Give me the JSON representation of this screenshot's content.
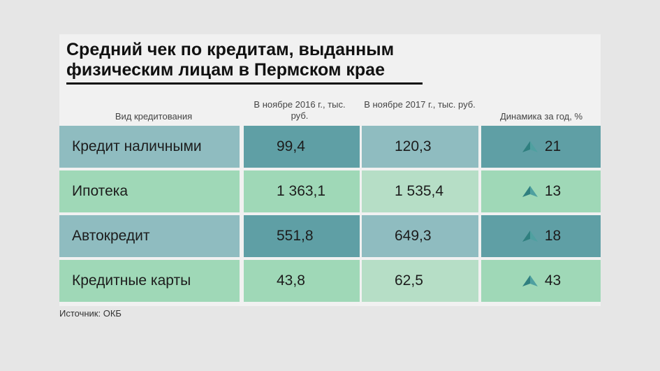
{
  "title": "Средний чек по кредитам, выданным физическим лицам в Пермском крае",
  "columns": [
    "Вид кредитования",
    "В ноябре 2016 г., тыс. руб.",
    "В ноябре 2017 г., тыс. руб.",
    "Динамика за год, %"
  ],
  "source": "Источник: ОКБ",
  "colors": {
    "dark_teal": "#5f9fa5",
    "mid_teal": "#8fbcc0",
    "light_green": "#9fd8b7",
    "pale_green": "#b6dec6",
    "arrow": "#2f7f7f"
  },
  "chart_data": {
    "type": "table",
    "categories": [
      "Кредит наличными",
      "Ипотека",
      "Автокредит",
      "Кредитные карты"
    ],
    "series": [
      {
        "name": "В ноябре 2016 г., тыс. руб.",
        "values": [
          "99,4",
          "1 363,1",
          "551,8",
          "43,8"
        ]
      },
      {
        "name": "В ноябре 2017 г., тыс. руб.",
        "values": [
          "120,3",
          "1 535,4",
          "649,3",
          "62,5"
        ]
      },
      {
        "name": "Динамика за год, %",
        "values": [
          "21",
          "13",
          "18",
          "43"
        ]
      }
    ]
  }
}
